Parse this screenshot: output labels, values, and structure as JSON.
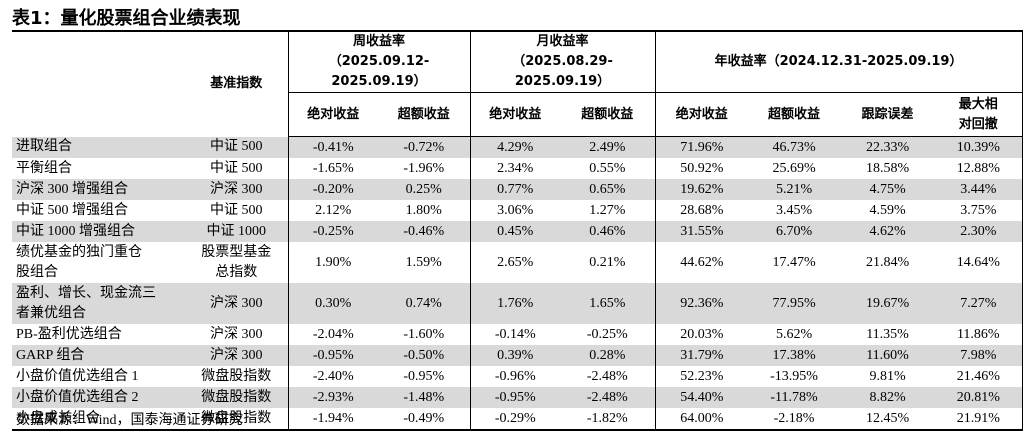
{
  "title": "表1：量化股票组合业绩表现",
  "table": {
    "header": {
      "benchmark": "基准指数",
      "groups": [
        {
          "title": "周收益率",
          "period": "（2025.09.12-2025.09.19）"
        },
        {
          "title": "月收益率",
          "period": "（2025.08.29-2025.09.19）"
        },
        {
          "title": "年收益率（2024.12.31-2025.09.19）"
        }
      ],
      "columns": [
        [
          "绝对收益"
        ],
        [
          "超额收益"
        ],
        [
          "绝对收益"
        ],
        [
          "超额收益"
        ],
        [
          "绝对收益"
        ],
        [
          "超额收益"
        ],
        [
          "跟踪误差"
        ],
        [
          "最大相",
          "对回撤"
        ]
      ]
    },
    "rows": [
      {
        "name": [
          "进取组合"
        ],
        "benchmark": [
          "中证 500"
        ],
        "values": [
          "-0.41%",
          "-0.72%",
          "4.29%",
          "2.49%",
          "71.96%",
          "46.73%",
          "22.33%",
          "10.39%"
        ]
      },
      {
        "name": [
          "平衡组合"
        ],
        "benchmark": [
          "中证 500"
        ],
        "values": [
          "-1.65%",
          "-1.96%",
          "2.34%",
          "0.55%",
          "50.92%",
          "25.69%",
          "18.58%",
          "12.88%"
        ]
      },
      {
        "name": [
          "沪深 300 增强组合"
        ],
        "benchmark": [
          "沪深 300"
        ],
        "values": [
          "-0.20%",
          "0.25%",
          "0.77%",
          "0.65%",
          "19.62%",
          "5.21%",
          "4.75%",
          "3.44%"
        ]
      },
      {
        "name": [
          "中证 500 增强组合"
        ],
        "benchmark": [
          "中证 500"
        ],
        "values": [
          "2.12%",
          "1.80%",
          "3.06%",
          "1.27%",
          "28.68%",
          "3.45%",
          "4.59%",
          "3.75%"
        ]
      },
      {
        "name": [
          "中证 1000 增强组合"
        ],
        "benchmark": [
          "中证 1000"
        ],
        "values": [
          "-0.25%",
          "-0.46%",
          "0.45%",
          "0.46%",
          "31.55%",
          "6.70%",
          "4.62%",
          "2.30%"
        ]
      },
      {
        "name": [
          "绩优基金的独门重仓",
          "股组合"
        ],
        "benchmark": [
          "股票型基金",
          "总指数"
        ],
        "values": [
          "1.90%",
          "1.59%",
          "2.65%",
          "0.21%",
          "44.62%",
          "17.47%",
          "21.84%",
          "14.64%"
        ]
      },
      {
        "name": [
          "盈利、增长、现金流三",
          "者兼优组合"
        ],
        "benchmark": [
          "沪深 300"
        ],
        "values": [
          "0.30%",
          "0.74%",
          "1.76%",
          "1.65%",
          "92.36%",
          "77.95%",
          "19.67%",
          "7.27%"
        ]
      },
      {
        "name": [
          "PB-盈利优选组合"
        ],
        "benchmark": [
          "沪深 300"
        ],
        "values": [
          "-2.04%",
          "-1.60%",
          "-0.14%",
          "-0.25%",
          "20.03%",
          "5.62%",
          "11.35%",
          "11.86%"
        ]
      },
      {
        "name": [
          "GARP 组合"
        ],
        "benchmark": [
          "沪深 300"
        ],
        "values": [
          "-0.95%",
          "-0.50%",
          "0.39%",
          "0.28%",
          "31.79%",
          "17.38%",
          "11.60%",
          "7.98%"
        ]
      },
      {
        "name": [
          "小盘价值优选组合 1"
        ],
        "benchmark": [
          "微盘股指数"
        ],
        "values": [
          "-2.40%",
          "-0.95%",
          "-0.96%",
          "-2.48%",
          "52.23%",
          "-13.95%",
          "9.81%",
          "21.46%"
        ]
      },
      {
        "name": [
          "小盘价值优选组合 2"
        ],
        "benchmark": [
          "微盘股指数"
        ],
        "values": [
          "-2.93%",
          "-1.48%",
          "-0.95%",
          "-2.48%",
          "54.40%",
          "-11.78%",
          "8.82%",
          "20.81%"
        ]
      },
      {
        "name": [
          "小盘成长组合"
        ],
        "benchmark": [
          "微盘股指数"
        ],
        "values": [
          "-1.94%",
          "-0.49%",
          "-0.29%",
          "-1.82%",
          "64.00%",
          "-2.18%",
          "12.45%",
          "21.91%"
        ]
      }
    ]
  },
  "source": "数据来源：Wind，国泰海通证券研究"
}
